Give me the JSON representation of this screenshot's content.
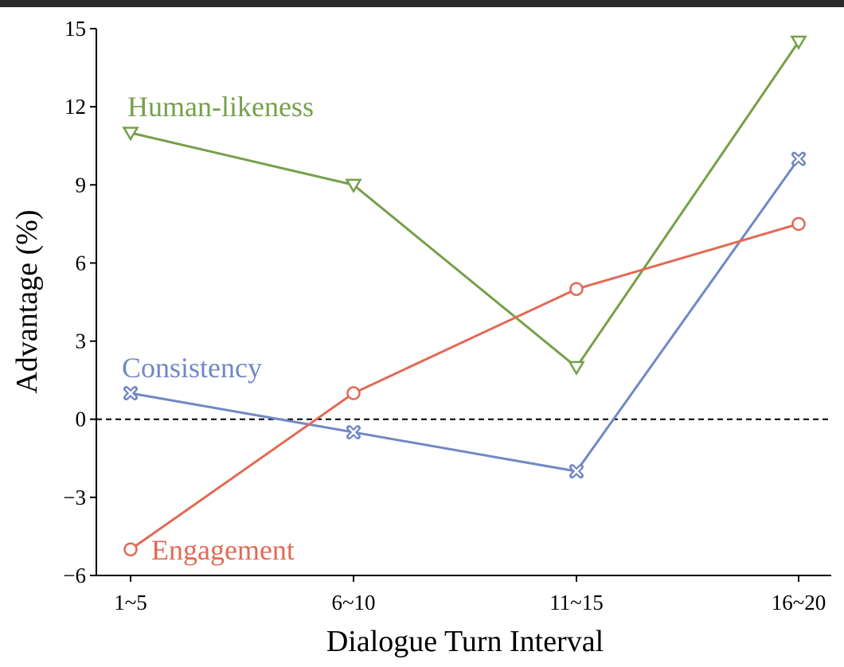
{
  "chart_data": {
    "type": "line",
    "categories": [
      "1~5",
      "6~10",
      "11~15",
      "16~20"
    ],
    "xlabel": "Dialogue Turn Interval",
    "ylabel": "Advantage (%)",
    "ylim": [
      -6,
      15
    ],
    "yticks": [
      -6,
      -3,
      0,
      3,
      6,
      9,
      12,
      15
    ],
    "ytick_labels": [
      "−6",
      "−3",
      "0",
      "3",
      "6",
      "9",
      "12",
      "15"
    ],
    "reference_line": {
      "y": 0,
      "style": "dashed",
      "color": "#000000"
    },
    "grid": false,
    "series": [
      {
        "name": "Human-likeness",
        "color": "#76a04a",
        "marker": "triangle-down",
        "values": [
          11,
          9,
          2,
          14.5
        ]
      },
      {
        "name": "Consistency",
        "color": "#7288c4",
        "marker": "x-filled",
        "values": [
          1,
          -0.5,
          -2,
          10
        ]
      },
      {
        "name": "Engagement",
        "color": "#e16a55",
        "marker": "circle",
        "values": [
          -5,
          1,
          5,
          7.5
        ]
      }
    ]
  }
}
